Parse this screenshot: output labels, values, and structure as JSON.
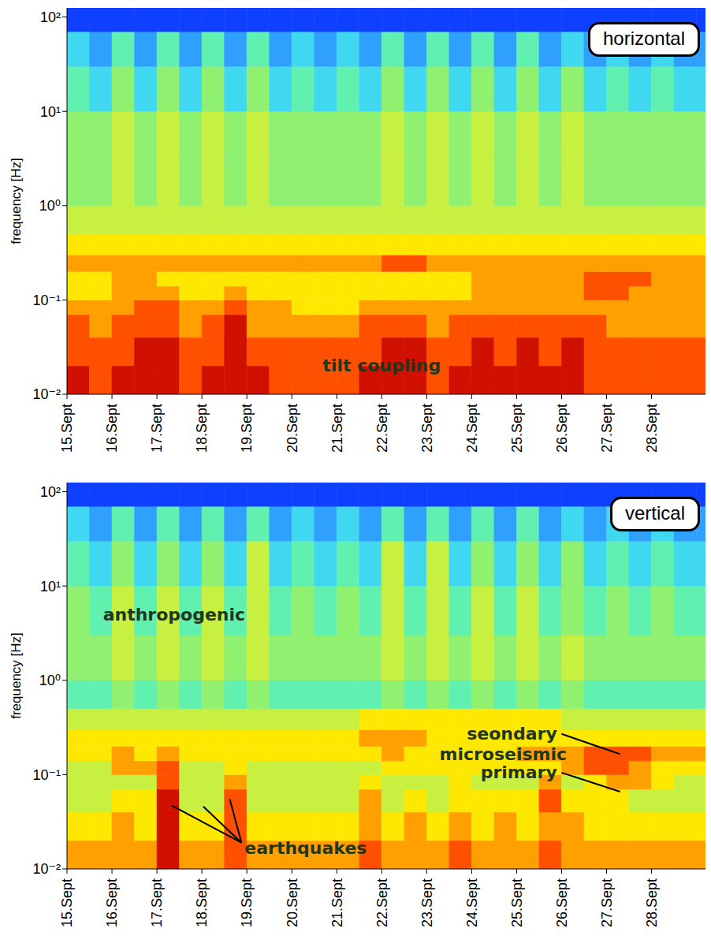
{
  "chart_data": [
    {
      "type": "heatmap",
      "label": "horizontal",
      "ylabel": "frequency [Hz]",
      "log": "y",
      "xlim": [
        15,
        29.2
      ],
      "ylim": [
        0.01,
        125
      ],
      "xticks": [
        {
          "value": 15,
          "label": "15.Sept"
        },
        {
          "value": 16,
          "label": "16.Sept"
        },
        {
          "value": 17,
          "label": "17.Sept"
        },
        {
          "value": 18,
          "label": "18.Sept"
        },
        {
          "value": 19,
          "label": "19.Sept"
        },
        {
          "value": 20,
          "label": "20.Sept"
        },
        {
          "value": 21,
          "label": "21.Sept"
        },
        {
          "value": 22,
          "label": "22.Sept"
        },
        {
          "value": 23,
          "label": "23.Sept"
        },
        {
          "value": 24,
          "label": "24.Sept"
        },
        {
          "value": 25,
          "label": "25.Sept"
        },
        {
          "value": 26,
          "label": "26.Sept"
        },
        {
          "value": 27,
          "label": "27.Sept"
        },
        {
          "value": 28,
          "label": "28.Sept"
        }
      ],
      "yticks": [
        {
          "value": 0.01,
          "label": "10⁻²"
        },
        {
          "value": 0.1,
          "label": "10⁻¹"
        },
        {
          "value": 1,
          "label": "10⁰"
        },
        {
          "value": 10,
          "label": "10¹"
        },
        {
          "value": 100,
          "label": "10²"
        }
      ],
      "x_edges": [
        15,
        15.5,
        16,
        16.5,
        17,
        17.5,
        18,
        18.5,
        19,
        19.5,
        20,
        20.5,
        21,
        21.5,
        22,
        22.5,
        23,
        23.5,
        24,
        24.5,
        25,
        25.5,
        26,
        26.5,
        27,
        27.5,
        28,
        28.5,
        29,
        29.2
      ],
      "y_edges": [
        0.01,
        0.02,
        0.04,
        0.07,
        0.1,
        0.14,
        0.2,
        0.3,
        0.5,
        1,
        3,
        10,
        30,
        70,
        125
      ],
      "color_range": [
        0,
        10
      ],
      "cells": [
        [
          10,
          9,
          10,
          10,
          10,
          9,
          10,
          10,
          10,
          9,
          9,
          9,
          9,
          10,
          10,
          10,
          9,
          10,
          10,
          10,
          10,
          10,
          10,
          9,
          9,
          9,
          9,
          9,
          9
        ],
        [
          9,
          9,
          9,
          10,
          10,
          9,
          9,
          10,
          9,
          9,
          9,
          9,
          9,
          9,
          10,
          10,
          9,
          9,
          10,
          9,
          10,
          9,
          10,
          9,
          9,
          9,
          9,
          9,
          9
        ],
        [
          9,
          8,
          9,
          9,
          9,
          8,
          9,
          10,
          8,
          8,
          8,
          8,
          8,
          9,
          9,
          9,
          8,
          9,
          9,
          9,
          9,
          9,
          9,
          9,
          8,
          8,
          8,
          8,
          8
        ],
        [
          8,
          8,
          8,
          9,
          9,
          8,
          8,
          9,
          8,
          8,
          7,
          7,
          7,
          8,
          8,
          8,
          8,
          8,
          8,
          8,
          8,
          8,
          8,
          8,
          8,
          8,
          8,
          8,
          8
        ],
        [
          7,
          7,
          8,
          8,
          8,
          7,
          7,
          8,
          7,
          7,
          7,
          7,
          7,
          7,
          7,
          7,
          7,
          7,
          8,
          8,
          8,
          8,
          8,
          9,
          9,
          8,
          8,
          8,
          8
        ],
        [
          7,
          7,
          8,
          8,
          7,
          7,
          7,
          7,
          7,
          7,
          7,
          7,
          7,
          7,
          7,
          7,
          7,
          7,
          8,
          8,
          8,
          8,
          8,
          9,
          9,
          9,
          8,
          8,
          8
        ],
        [
          8,
          8,
          8,
          8,
          8,
          8,
          8,
          8,
          8,
          8,
          8,
          8,
          8,
          8,
          9,
          9,
          8,
          8,
          8,
          8,
          8,
          8,
          8,
          8,
          8,
          8,
          8,
          8,
          8
        ],
        [
          7,
          7,
          7,
          7,
          7,
          7,
          7,
          7,
          7,
          7,
          7,
          7,
          7,
          7,
          7,
          7,
          7,
          7,
          7,
          7,
          7,
          7,
          7,
          7,
          7,
          7,
          7,
          7,
          7
        ],
        [
          6,
          6,
          6,
          6,
          6,
          6,
          6,
          6,
          6,
          6,
          6,
          6,
          6,
          6,
          6,
          6,
          6,
          6,
          6,
          6,
          6,
          6,
          6,
          6,
          6,
          6,
          6,
          6,
          6
        ],
        [
          5,
          5,
          6,
          5,
          6,
          5,
          6,
          5,
          6,
          5,
          5,
          5,
          5,
          5,
          6,
          5,
          6,
          5,
          6,
          5,
          6,
          5,
          6,
          5,
          5,
          5,
          5,
          5,
          5
        ],
        [
          5,
          5,
          6,
          5,
          6,
          5,
          6,
          5,
          6,
          5,
          5,
          5,
          5,
          5,
          6,
          5,
          6,
          5,
          6,
          5,
          6,
          5,
          6,
          5,
          5,
          5,
          5,
          5,
          5
        ],
        [
          4,
          3,
          5,
          3,
          5,
          3,
          5,
          3,
          5,
          3,
          4,
          3,
          4,
          3,
          5,
          3,
          5,
          3,
          5,
          3,
          5,
          3,
          5,
          3,
          4,
          3,
          4,
          3,
          3
        ],
        [
          3,
          2,
          4,
          2,
          4,
          2,
          4,
          2,
          4,
          2,
          3,
          2,
          3,
          2,
          4,
          2,
          4,
          2,
          4,
          2,
          4,
          2,
          3,
          2,
          3,
          2,
          3,
          2,
          2
        ],
        [
          1,
          1,
          1,
          1,
          1,
          1,
          1,
          1,
          1,
          1,
          1,
          1,
          1,
          1,
          1,
          1,
          1,
          1,
          1,
          1,
          1,
          1,
          1,
          1,
          1,
          1,
          1,
          1,
          1
        ]
      ],
      "annotations": [
        "tilt coupling"
      ]
    },
    {
      "type": "heatmap",
      "label": "vertical",
      "ylabel": "frequency [Hz]",
      "log": "y",
      "xlim": [
        15,
        29.2
      ],
      "ylim": [
        0.01,
        125
      ],
      "xticks": [
        {
          "value": 15,
          "label": "15.Sept"
        },
        {
          "value": 16,
          "label": "16.Sept"
        },
        {
          "value": 17,
          "label": "17.Sept"
        },
        {
          "value": 18,
          "label": "18.Sept"
        },
        {
          "value": 19,
          "label": "19.Sept"
        },
        {
          "value": 20,
          "label": "20.Sept"
        },
        {
          "value": 21,
          "label": "21.Sept"
        },
        {
          "value": 22,
          "label": "22.Sept"
        },
        {
          "value": 23,
          "label": "23.Sept"
        },
        {
          "value": 24,
          "label": "24.Sept"
        },
        {
          "value": 25,
          "label": "25.Sept"
        },
        {
          "value": 26,
          "label": "26.Sept"
        },
        {
          "value": 27,
          "label": "27.Sept"
        },
        {
          "value": 28,
          "label": "28.Sept"
        }
      ],
      "yticks": [
        {
          "value": 0.01,
          "label": "10⁻²"
        },
        {
          "value": 0.1,
          "label": "10⁻¹"
        },
        {
          "value": 1,
          "label": "10⁰"
        },
        {
          "value": 10,
          "label": "10¹"
        },
        {
          "value": 100,
          "label": "10²"
        }
      ],
      "x_edges": [
        15,
        15.5,
        16,
        16.5,
        17,
        17.5,
        18,
        18.5,
        19,
        19.5,
        20,
        20.5,
        21,
        21.5,
        22,
        22.5,
        23,
        23.5,
        24,
        24.5,
        25,
        25.5,
        26,
        26.5,
        27,
        27.5,
        28,
        28.5,
        29,
        29.2
      ],
      "y_edges": [
        0.01,
        0.02,
        0.04,
        0.07,
        0.1,
        0.14,
        0.2,
        0.3,
        0.5,
        1,
        3,
        10,
        30,
        70,
        125
      ],
      "color_range": [
        0,
        10
      ],
      "cells": [
        [
          8,
          8,
          8,
          8,
          10,
          8,
          8,
          9,
          8,
          8,
          8,
          8,
          8,
          9,
          8,
          8,
          8,
          9,
          8,
          8,
          8,
          9,
          8,
          8,
          8,
          8,
          8,
          8,
          8
        ],
        [
          7,
          7,
          8,
          7,
          10,
          7,
          7,
          9,
          7,
          7,
          7,
          7,
          7,
          8,
          7,
          8,
          7,
          8,
          7,
          8,
          7,
          8,
          8,
          7,
          7,
          7,
          7,
          7,
          7
        ],
        [
          6,
          6,
          7,
          7,
          10,
          6,
          6,
          9,
          6,
          6,
          6,
          6,
          6,
          8,
          6,
          7,
          6,
          7,
          7,
          7,
          7,
          9,
          7,
          7,
          7,
          6,
          6,
          6,
          6
        ],
        [
          6,
          6,
          6,
          6,
          9,
          6,
          6,
          8,
          6,
          6,
          6,
          6,
          6,
          7,
          6,
          6,
          6,
          7,
          6,
          6,
          6,
          8,
          6,
          7,
          8,
          8,
          7,
          6,
          6
        ],
        [
          6,
          6,
          8,
          8,
          9,
          6,
          6,
          7,
          6,
          6,
          6,
          6,
          6,
          6,
          7,
          7,
          7,
          7,
          7,
          7,
          7,
          7,
          8,
          9,
          9,
          8,
          7,
          7,
          7
        ],
        [
          7,
          7,
          8,
          7,
          8,
          7,
          7,
          7,
          7,
          7,
          7,
          7,
          7,
          7,
          8,
          7,
          7,
          7,
          7,
          7,
          8,
          8,
          8,
          9,
          9,
          9,
          8,
          8,
          8
        ],
        [
          7,
          7,
          7,
          7,
          7,
          7,
          7,
          7,
          7,
          7,
          7,
          7,
          7,
          8,
          8,
          8,
          7,
          7,
          7,
          7,
          7,
          7,
          7,
          7,
          7,
          7,
          7,
          7,
          7
        ],
        [
          6,
          6,
          6,
          6,
          6,
          6,
          6,
          6,
          6,
          6,
          6,
          6,
          6,
          7,
          7,
          7,
          7,
          7,
          7,
          7,
          7,
          7,
          6,
          6,
          6,
          6,
          6,
          6,
          6
        ],
        [
          4,
          4,
          5,
          4,
          5,
          4,
          5,
          4,
          5,
          4,
          4,
          4,
          4,
          4,
          5,
          4,
          5,
          4,
          5,
          4,
          5,
          4,
          5,
          4,
          4,
          4,
          4,
          4,
          4
        ],
        [
          5,
          5,
          6,
          5,
          6,
          5,
          6,
          5,
          6,
          5,
          5,
          5,
          5,
          5,
          6,
          5,
          6,
          5,
          6,
          5,
          6,
          5,
          6,
          5,
          5,
          5,
          5,
          5,
          5
        ],
        [
          5,
          4,
          6,
          4,
          6,
          4,
          6,
          4,
          6,
          4,
          5,
          4,
          5,
          4,
          6,
          4,
          6,
          4,
          6,
          4,
          6,
          4,
          5,
          4,
          5,
          4,
          5,
          4,
          4
        ],
        [
          4,
          3,
          5,
          3,
          5,
          3,
          5,
          3,
          6,
          3,
          4,
          3,
          4,
          3,
          6,
          3,
          6,
          3,
          5,
          3,
          5,
          3,
          5,
          3,
          4,
          3,
          4,
          3,
          3
        ],
        [
          3,
          2,
          4,
          2,
          4,
          2,
          4,
          2,
          4,
          2,
          3,
          2,
          3,
          2,
          4,
          2,
          4,
          2,
          4,
          2,
          4,
          2,
          3,
          2,
          3,
          2,
          3,
          2,
          2
        ],
        [
          1,
          1,
          1,
          1,
          1,
          1,
          1,
          1,
          1,
          1,
          1,
          1,
          1,
          1,
          1,
          1,
          1,
          1,
          1,
          1,
          1,
          1,
          1,
          1,
          1,
          1,
          1,
          1,
          1
        ]
      ],
      "annotations": [
        "anthropogenic",
        "seondary",
        "microseismic",
        "primary",
        "earthquakes"
      ]
    }
  ]
}
